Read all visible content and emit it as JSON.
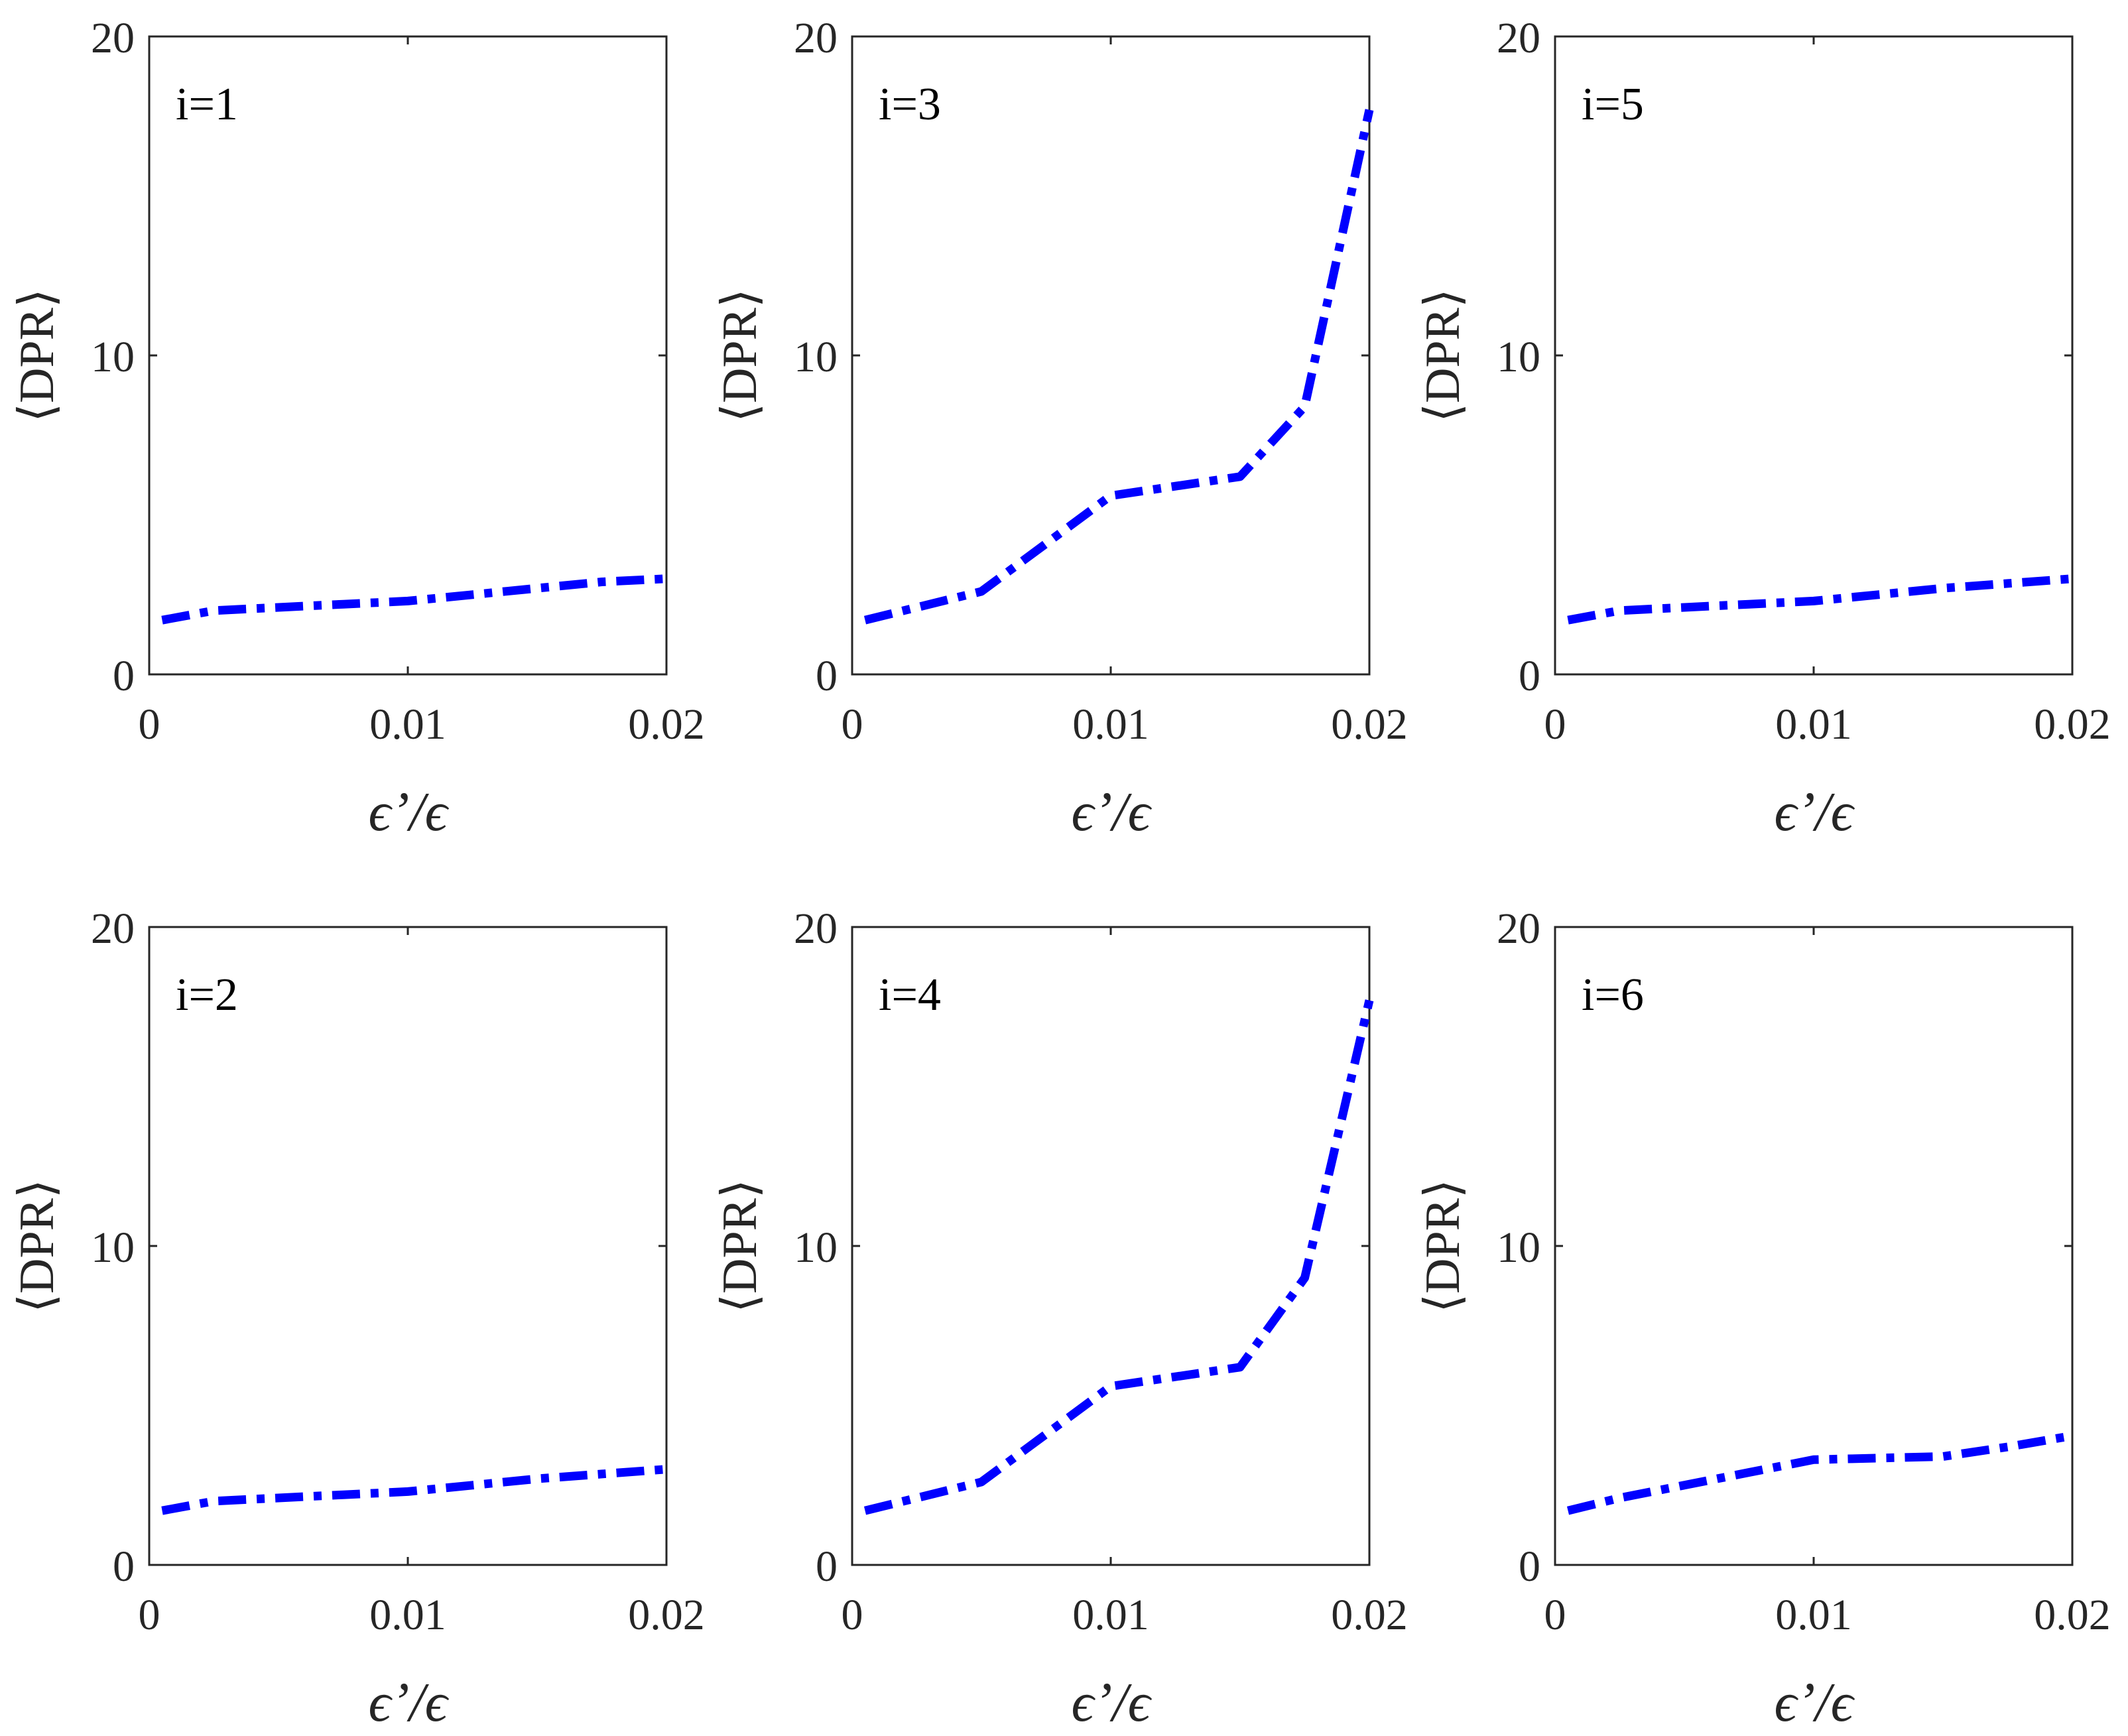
{
  "figure": {
    "type": "multi-panel line chart grid",
    "rows": 2,
    "cols": 3
  },
  "chart_data": [
    {
      "type": "line",
      "panel_label": "i=1",
      "xlabel": "ϵ’/ϵ",
      "ylabel": "⟨DPR⟩",
      "xlim": [
        0,
        0.02
      ],
      "ylim": [
        0,
        20
      ],
      "xticks": [
        0,
        0.01,
        0.02
      ],
      "xtick_labels": [
        "0",
        "0.01",
        "0.02"
      ],
      "yticks": [
        0,
        10,
        20
      ],
      "ytick_labels": [
        "0",
        "10",
        "20"
      ],
      "series": [
        {
          "name": "DPR",
          "color": "#0000ff",
          "style": "dash-dot",
          "x": [
            0.0005,
            0.0025,
            0.005,
            0.0075,
            0.01,
            0.0125,
            0.015,
            0.0175,
            0.02
          ],
          "y": [
            1.7,
            2.0,
            2.1,
            2.2,
            2.3,
            2.5,
            2.7,
            2.9,
            3.0
          ]
        }
      ]
    },
    {
      "type": "line",
      "panel_label": "i=3",
      "xlabel": "ϵ’/ϵ",
      "ylabel": "⟨DPR⟩",
      "xlim": [
        0,
        0.02
      ],
      "ylim": [
        0,
        20
      ],
      "xticks": [
        0,
        0.01,
        0.02
      ],
      "xtick_labels": [
        "0",
        "0.01",
        "0.02"
      ],
      "yticks": [
        0,
        10,
        20
      ],
      "ytick_labels": [
        "0",
        "10",
        "20"
      ],
      "series": [
        {
          "name": "DPR",
          "color": "#0000ff",
          "style": "dash-dot",
          "x": [
            0.0005,
            0.0025,
            0.005,
            0.01,
            0.015,
            0.0175,
            0.02
          ],
          "y": [
            1.7,
            2.1,
            2.6,
            5.6,
            6.2,
            8.4,
            17.7
          ]
        }
      ]
    },
    {
      "type": "line",
      "panel_label": "i=5",
      "xlabel": "ϵ’/ϵ",
      "ylabel": "⟨DPR⟩",
      "xlim": [
        0,
        0.02
      ],
      "ylim": [
        0,
        20
      ],
      "xticks": [
        0,
        0.01,
        0.02
      ],
      "xtick_labels": [
        "0",
        "0.01",
        "0.02"
      ],
      "yticks": [
        0,
        10,
        20
      ],
      "ytick_labels": [
        "0",
        "10",
        "20"
      ],
      "series": [
        {
          "name": "DPR",
          "color": "#0000ff",
          "style": "dash-dot",
          "x": [
            0.0005,
            0.0025,
            0.005,
            0.0075,
            0.01,
            0.0125,
            0.015,
            0.0175,
            0.02
          ],
          "y": [
            1.7,
            2.0,
            2.1,
            2.2,
            2.3,
            2.5,
            2.7,
            2.85,
            3.0
          ]
        }
      ]
    },
    {
      "type": "line",
      "panel_label": "i=2",
      "xlabel": "ϵ’/ϵ",
      "ylabel": "⟨DPR⟩",
      "xlim": [
        0,
        0.02
      ],
      "ylim": [
        0,
        20
      ],
      "xticks": [
        0,
        0.01,
        0.02
      ],
      "xtick_labels": [
        "0",
        "0.01",
        "0.02"
      ],
      "yticks": [
        0,
        10,
        20
      ],
      "ytick_labels": [
        "0",
        "10",
        "20"
      ],
      "series": [
        {
          "name": "DPR",
          "color": "#0000ff",
          "style": "dash-dot",
          "x": [
            0.0005,
            0.0025,
            0.005,
            0.0075,
            0.01,
            0.0125,
            0.015,
            0.0175,
            0.02
          ],
          "y": [
            1.7,
            2.0,
            2.1,
            2.2,
            2.3,
            2.5,
            2.7,
            2.85,
            3.0
          ]
        }
      ]
    },
    {
      "type": "line",
      "panel_label": "i=4",
      "xlabel": "ϵ’/ϵ",
      "ylabel": "⟨DPR⟩",
      "xlim": [
        0,
        0.02
      ],
      "ylim": [
        0,
        20
      ],
      "xticks": [
        0,
        0.01,
        0.02
      ],
      "xtick_labels": [
        "0",
        "0.01",
        "0.02"
      ],
      "yticks": [
        0,
        10,
        20
      ],
      "ytick_labels": [
        "0",
        "10",
        "20"
      ],
      "series": [
        {
          "name": "DPR",
          "color": "#0000ff",
          "style": "dash-dot",
          "x": [
            0.0005,
            0.0025,
            0.005,
            0.01,
            0.015,
            0.0175,
            0.02
          ],
          "y": [
            1.7,
            2.1,
            2.6,
            5.6,
            6.2,
            9.0,
            17.7
          ]
        }
      ]
    },
    {
      "type": "line",
      "panel_label": "i=6",
      "xlabel": "ϵ’/ϵ",
      "ylabel": "⟨DPR⟩",
      "xlim": [
        0,
        0.02
      ],
      "ylim": [
        0,
        20
      ],
      "xticks": [
        0,
        0.01,
        0.02
      ],
      "xtick_labels": [
        "0",
        "0.01",
        "0.02"
      ],
      "yticks": [
        0,
        10,
        20
      ],
      "ytick_labels": [
        "0",
        "10",
        "20"
      ],
      "series": [
        {
          "name": "DPR",
          "color": "#0000ff",
          "style": "dash-dot",
          "x": [
            0.0005,
            0.0025,
            0.005,
            0.0075,
            0.01,
            0.0125,
            0.015,
            0.0175,
            0.02
          ],
          "y": [
            1.7,
            2.1,
            2.5,
            2.9,
            3.3,
            3.35,
            3.4,
            3.7,
            4.05
          ]
        }
      ]
    }
  ]
}
